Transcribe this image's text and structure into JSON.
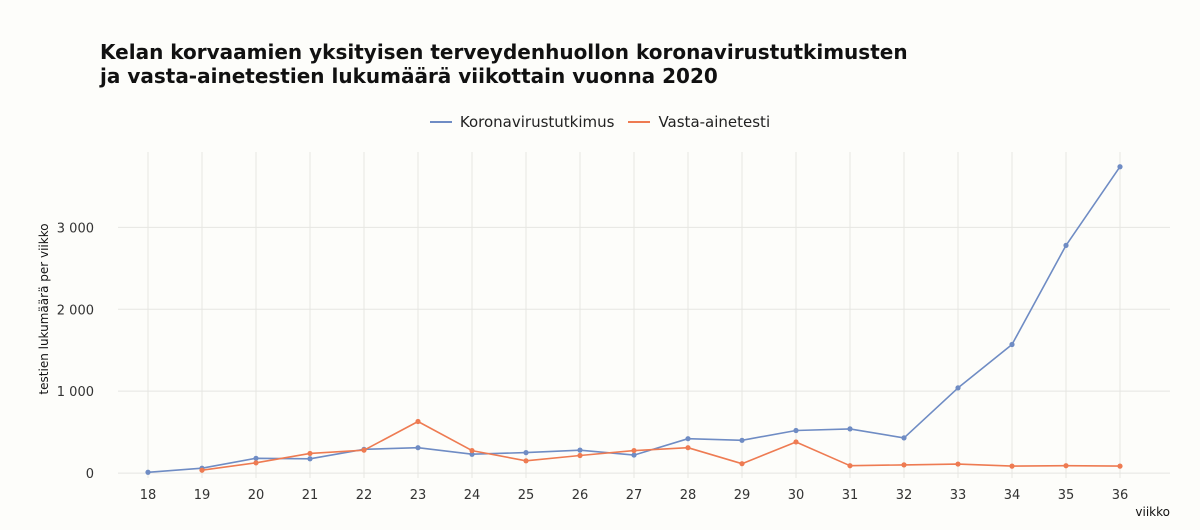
{
  "chart_data": {
    "type": "line",
    "title_line1": "Kelan korvaamien yksityisen terveydenhuollon koronavirustutkimusten",
    "title_line2": "ja vasta-ainetestien lukumäärä viikottain vuonna 2020",
    "xlabel": "viikko",
    "ylabel": "testien lukumäärä per viikko",
    "categories": [
      "18",
      "19",
      "20",
      "21",
      "22",
      "23",
      "24",
      "25",
      "26",
      "27",
      "28",
      "29",
      "30",
      "31",
      "32",
      "33",
      "34",
      "35",
      "36"
    ],
    "y_ticks": [
      {
        "value": 0,
        "label": "0"
      },
      {
        "value": 1000,
        "label": "1 000"
      },
      {
        "value": 2000,
        "label": "2 000"
      },
      {
        "value": 3000,
        "label": "3 000"
      }
    ],
    "ylim": [
      -60,
      3920
    ],
    "grid": true,
    "legend_position": "top-center",
    "series": [
      {
        "name": "Koronavirustutkimus",
        "color": "#6f8cc4",
        "values": [
          10,
          60,
          180,
          175,
          290,
          310,
          230,
          250,
          280,
          220,
          420,
          400,
          520,
          540,
          430,
          1040,
          1570,
          2780,
          3740
        ]
      },
      {
        "name": "Vasta-ainetesti",
        "color": "#ee7b52",
        "values": [
          null,
          35,
          125,
          240,
          280,
          630,
          275,
          150,
          215,
          275,
          310,
          115,
          380,
          90,
          100,
          110,
          85,
          90,
          85
        ]
      }
    ]
  }
}
